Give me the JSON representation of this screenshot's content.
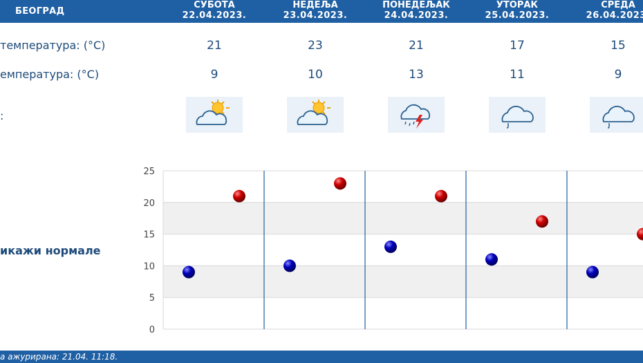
{
  "header": {
    "city": "БЕОГРАД",
    "days": [
      {
        "name": "СУБОТА",
        "date": "22.04.2023."
      },
      {
        "name": "НЕДЕЉА",
        "date": "23.04.2023."
      },
      {
        "name": "ПОНЕДЕЉАК",
        "date": "24.04.2023."
      },
      {
        "name": "УТОРАК",
        "date": "25.04.2023."
      },
      {
        "name": "СРЕДА",
        "date": "26.04.2023."
      }
    ]
  },
  "rows": {
    "max_label": "температура: (°C)",
    "min_label": "емпература: (°C)",
    "icon_label": ":",
    "max": [
      "21",
      "23",
      "21",
      "17",
      "15"
    ],
    "min": [
      "9",
      "10",
      "13",
      "11",
      "9"
    ],
    "icons": [
      "sun-cloud-icon",
      "sun-cloud-icon",
      "storm-rain-icon",
      "cloud-drizzle-icon",
      "cloud-drizzle-icon"
    ]
  },
  "toggle_label": "икажи нормале",
  "footer_text": "а ажурирана:  21.04.  11:18.",
  "colors": {
    "header_bg": "#1f5fa3",
    "max_point": "#cc0000",
    "min_point": "#0000bb",
    "divider": "#1f5fa3"
  },
  "chart_data": {
    "type": "scatter",
    "categories": [
      "22.04.2023.",
      "23.04.2023.",
      "24.04.2023.",
      "25.04.2023.",
      "26.04.2023."
    ],
    "series": [
      {
        "name": "",
        "values": [
          21,
          23,
          21,
          17,
          15
        ]
      },
      {
        "name": "",
        "values": [
          9,
          10,
          13,
          11,
          9
        ]
      }
    ],
    "ylim": [
      0,
      25
    ],
    "yticks": [
      "0",
      "5",
      "10",
      "15",
      "20",
      "25"
    ],
    "grid": "horizontal bands"
  }
}
